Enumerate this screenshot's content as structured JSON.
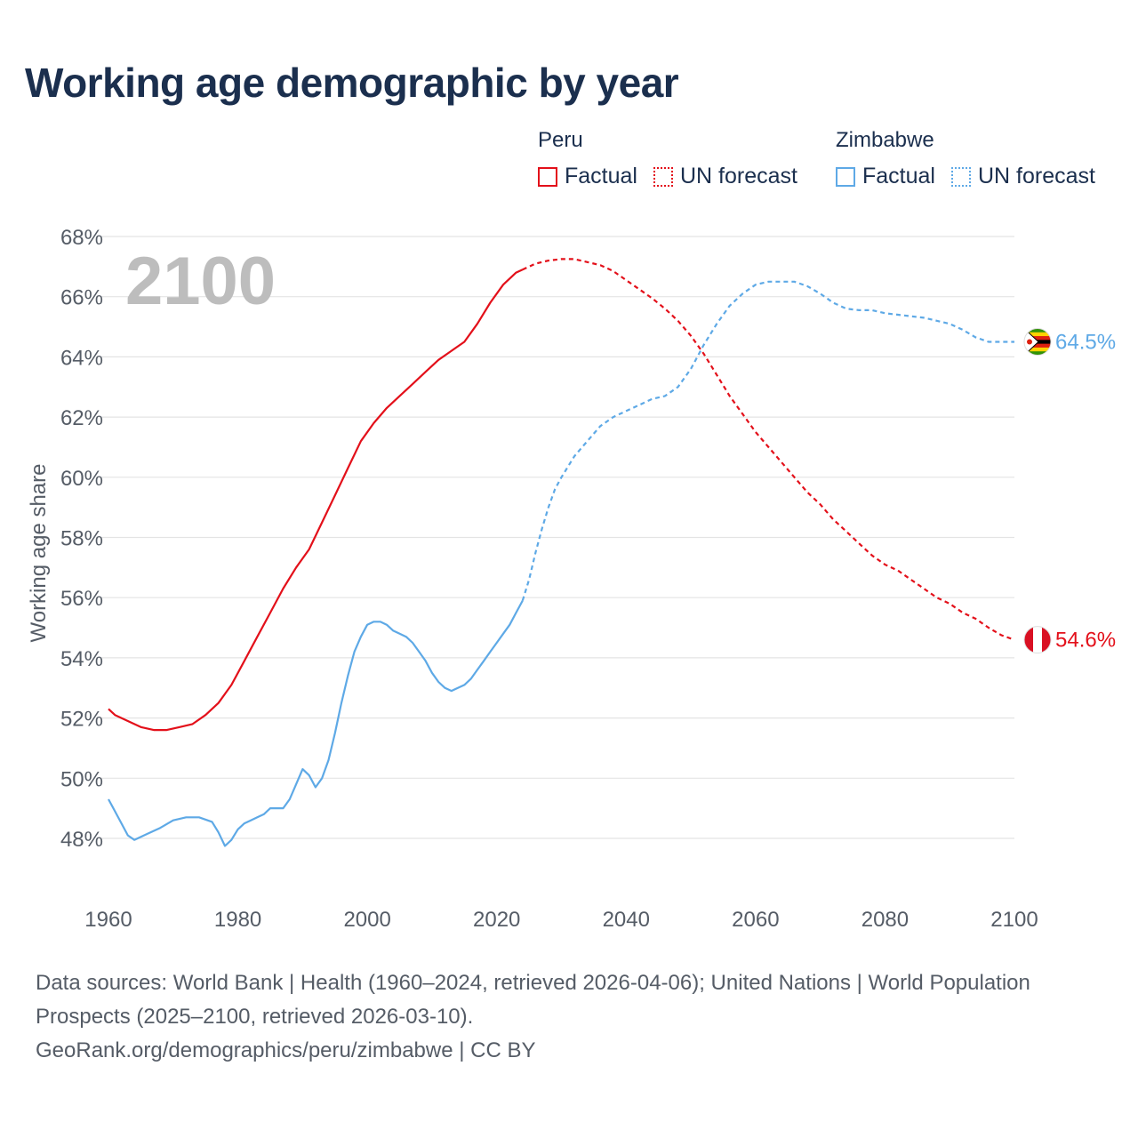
{
  "title": "Working age demographic by year",
  "legend": {
    "groups": [
      {
        "name": "Peru",
        "factual_label": "Factual",
        "forecast_label": "UN forecast",
        "color": "#e3101a"
      },
      {
        "name": "Zimbabwe",
        "factual_label": "Factual",
        "forecast_label": "UN forecast",
        "color": "#5ea9e6"
      }
    ]
  },
  "chart_data": {
    "type": "line",
    "title": "Working age demographic by year",
    "ylabel": "Working age share",
    "xlabel": "",
    "year_watermark": "2100",
    "xlim": [
      1960,
      2100
    ],
    "ylim": [
      46.8,
      68.2
    ],
    "x_ticks": [
      1960,
      1980,
      2000,
      2020,
      2040,
      2060,
      2080,
      2100
    ],
    "x_tick_labels": [
      "1960",
      "1980",
      "2000",
      "2020",
      "2040",
      "2060",
      "2080",
      "2100"
    ],
    "y_ticks": [
      48,
      50,
      52,
      54,
      56,
      58,
      60,
      62,
      64,
      66,
      68
    ],
    "y_tick_labels": [
      "48%",
      "50%",
      "52%",
      "54%",
      "56%",
      "58%",
      "60%",
      "62%",
      "64%",
      "66%",
      "68%"
    ],
    "factual_end_year": 2024,
    "series": [
      {
        "name": "Peru",
        "color": "#e3101a",
        "end_label": "54.6%",
        "flag": "peru-flag",
        "x": [
          1960,
          1961,
          1963,
          1965,
          1967,
          1969,
          1971,
          1973,
          1975,
          1977,
          1979,
          1981,
          1983,
          1985,
          1987,
          1989,
          1991,
          1993,
          1995,
          1997,
          1999,
          2001,
          2003,
          2005,
          2007,
          2009,
          2011,
          2013,
          2015,
          2017,
          2019,
          2021,
          2023,
          2024,
          2026,
          2028,
          2030,
          2032,
          2034,
          2036,
          2038,
          2040,
          2042,
          2044,
          2046,
          2048,
          2050,
          2052,
          2054,
          2056,
          2058,
          2060,
          2062,
          2064,
          2066,
          2068,
          2070,
          2072,
          2074,
          2076,
          2078,
          2080,
          2082,
          2084,
          2086,
          2088,
          2090,
          2092,
          2094,
          2096,
          2098,
          2100
        ],
        "values": [
          52.3,
          52.1,
          51.9,
          51.7,
          51.6,
          51.6,
          51.7,
          51.8,
          52.1,
          52.5,
          53.1,
          53.9,
          54.7,
          55.5,
          56.3,
          57.0,
          57.6,
          58.5,
          59.4,
          60.3,
          61.2,
          61.8,
          62.3,
          62.7,
          63.1,
          63.5,
          63.9,
          64.2,
          64.5,
          65.1,
          65.8,
          66.4,
          66.8,
          66.9,
          67.1,
          67.2,
          67.25,
          67.25,
          67.15,
          67.05,
          66.85,
          66.55,
          66.25,
          65.95,
          65.6,
          65.2,
          64.7,
          64.1,
          63.4,
          62.7,
          62.1,
          61.5,
          61.0,
          60.5,
          60.0,
          59.5,
          59.1,
          58.6,
          58.2,
          57.8,
          57.4,
          57.1,
          56.9,
          56.6,
          56.3,
          56.0,
          55.8,
          55.5,
          55.3,
          55.0,
          54.75,
          54.6
        ]
      },
      {
        "name": "Zimbabwe",
        "color": "#5ea9e6",
        "end_label": "64.5%",
        "flag": "zimbabwe-flag",
        "x": [
          1960,
          1961,
          1962,
          1963,
          1964,
          1966,
          1968,
          1970,
          1972,
          1974,
          1976,
          1977,
          1978,
          1979,
          1980,
          1981,
          1982,
          1983,
          1984,
          1985,
          1986,
          1987,
          1988,
          1989,
          1990,
          1991,
          1992,
          1993,
          1994,
          1995,
          1996,
          1997,
          1998,
          1999,
          2000,
          2001,
          2002,
          2003,
          2004,
          2005,
          2006,
          2007,
          2008,
          2009,
          2010,
          2011,
          2012,
          2013,
          2014,
          2015,
          2016,
          2017,
          2018,
          2019,
          2020,
          2021,
          2022,
          2023,
          2024,
          2025,
          2026,
          2027,
          2028,
          2029,
          2030,
          2032,
          2034,
          2036,
          2038,
          2040,
          2042,
          2044,
          2046,
          2048,
          2050,
          2052,
          2054,
          2056,
          2058,
          2060,
          2062,
          2064,
          2066,
          2068,
          2070,
          2072,
          2074,
          2076,
          2078,
          2080,
          2082,
          2084,
          2086,
          2088,
          2090,
          2092,
          2094,
          2096,
          2098,
          2100
        ],
        "values": [
          49.3,
          48.9,
          48.5,
          48.1,
          47.95,
          48.15,
          48.35,
          48.6,
          48.7,
          48.7,
          48.55,
          48.2,
          47.75,
          47.95,
          48.3,
          48.5,
          48.6,
          48.7,
          48.8,
          49.0,
          49.0,
          49.0,
          49.3,
          49.8,
          50.3,
          50.1,
          49.7,
          50.0,
          50.6,
          51.5,
          52.5,
          53.4,
          54.2,
          54.7,
          55.1,
          55.2,
          55.2,
          55.1,
          54.9,
          54.8,
          54.7,
          54.5,
          54.2,
          53.9,
          53.5,
          53.2,
          53.0,
          52.9,
          53.0,
          53.1,
          53.3,
          53.6,
          53.9,
          54.2,
          54.5,
          54.8,
          55.1,
          55.5,
          55.9,
          56.6,
          57.5,
          58.3,
          59.0,
          59.6,
          60.0,
          60.7,
          61.2,
          61.7,
          62.0,
          62.2,
          62.4,
          62.6,
          62.7,
          63.0,
          63.6,
          64.4,
          65.1,
          65.7,
          66.1,
          66.4,
          66.5,
          66.5,
          66.5,
          66.35,
          66.1,
          65.8,
          65.6,
          65.55,
          65.55,
          65.45,
          65.4,
          65.35,
          65.3,
          65.2,
          65.1,
          64.9,
          64.65,
          64.5,
          64.5,
          64.5
        ]
      }
    ]
  },
  "footer": {
    "sources_line": "Data sources: World Bank | Health (1960–2024, retrieved 2026-04-06); United Nations | World Population Prospects (2025–2100, retrieved 2026-03-10).",
    "site_line": "GeoRank.org/demographics/peru/zimbabwe | CC BY"
  }
}
